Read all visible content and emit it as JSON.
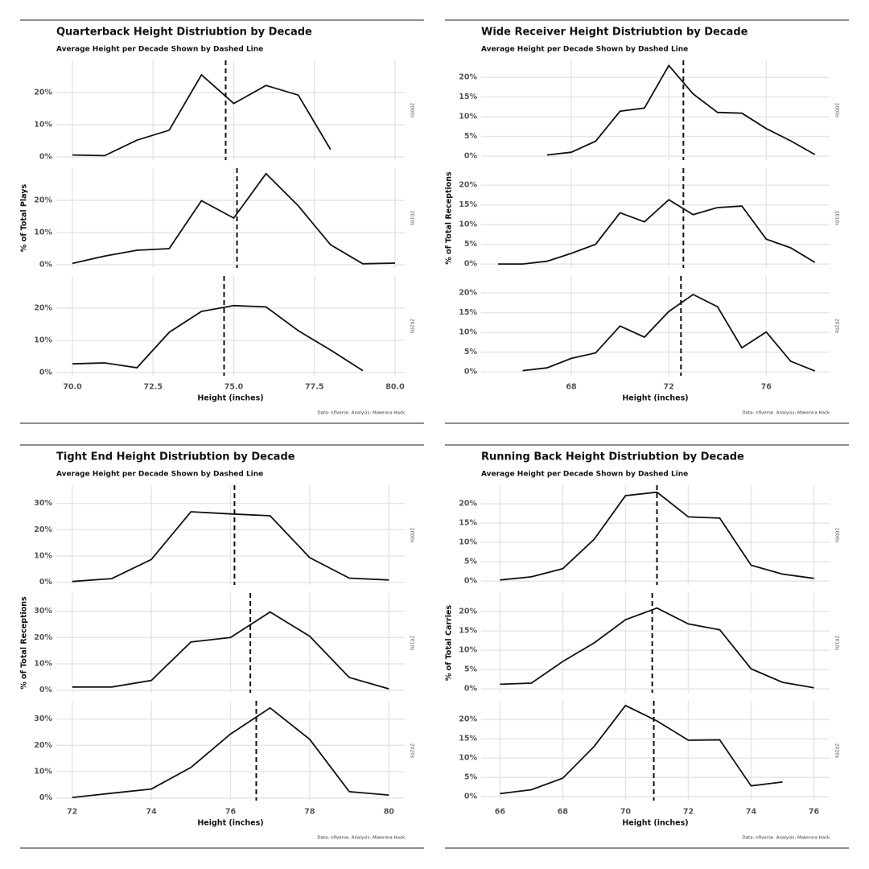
{
  "chart_data": [
    {
      "type": "line",
      "title": "Quarterback Height Distriubtion by Decade",
      "subtitle": "Average Height per Decade Shown by Dashed Line",
      "y_label": "% of Total Plays",
      "x_label": "Height (inches)",
      "caption": "Data: nflverse. Analysis: Makenna Hack.",
      "color": "#111111",
      "xlim": [
        69.5,
        80.3
      ],
      "xticks": [
        {
          "value": 70,
          "label": "70.0"
        },
        {
          "value": 72.5,
          "label": "72.5"
        },
        {
          "value": 75,
          "label": "75.0"
        },
        {
          "value": 77.5,
          "label": "77.5"
        },
        {
          "value": 80,
          "label": "80.0"
        }
      ],
      "ylim": [
        -1,
        30
      ],
      "yticks": [
        {
          "value": 0,
          "label": "0%"
        },
        {
          "value": 10,
          "label": "10%"
        },
        {
          "value": 20,
          "label": "20%"
        }
      ],
      "facets": [
        {
          "label": "2000s",
          "x": [
            70,
            71,
            72,
            73,
            74,
            75,
            76,
            77,
            78
          ],
          "values": [
            0.6,
            0.4,
            5.2,
            8.3,
            25.5,
            16.6,
            22.2,
            19.2,
            2.3
          ],
          "mean": 74.75
        },
        {
          "label": "2010s",
          "x": [
            70,
            71,
            72,
            73,
            74,
            75,
            76,
            77,
            78,
            79,
            80
          ],
          "values": [
            0.4,
            2.7,
            4.5,
            5.0,
            19.9,
            14.5,
            28.3,
            18.3,
            6.2,
            0.3,
            0.5
          ],
          "mean": 75.1
        },
        {
          "label": "2020s",
          "x": [
            70,
            71,
            72,
            73,
            74,
            75,
            76,
            77,
            78,
            79
          ],
          "values": [
            2.7,
            3.0,
            1.5,
            12.5,
            19.0,
            20.8,
            20.4,
            13.0,
            7.0,
            0.6
          ],
          "mean": 74.7
        }
      ]
    },
    {
      "type": "line",
      "title": "Wide Receiver Height Distriubtion by Decade",
      "subtitle": "Average Height per Decade Shown by Dashed Line",
      "y_label": "% of Total Receptions",
      "x_label": "Height (inches)",
      "caption": "Data: nflverse. Analysis: Makenna Hack.",
      "color": "#111111",
      "xlim": [
        64.3,
        78.6
      ],
      "xticks": [
        68,
        72,
        76
      ],
      "ylim": [
        -1,
        24.3
      ],
      "yticks": [
        {
          "value": 0,
          "label": "0%"
        },
        {
          "value": 5,
          "label": "5%"
        },
        {
          "value": 10,
          "label": "10%"
        },
        {
          "value": 15,
          "label": "15%"
        },
        {
          "value": 20,
          "label": "20%"
        }
      ],
      "facets": [
        {
          "label": "2000s",
          "x": [
            67,
            68,
            69,
            70,
            71,
            72,
            73,
            74,
            75,
            76,
            77,
            78
          ],
          "values": [
            0.3,
            1.0,
            3.8,
            11.4,
            12.2,
            23.0,
            15.8,
            11.1,
            10.9,
            7.0,
            3.9,
            0.4
          ],
          "mean": 72.6
        },
        {
          "label": "2010s",
          "x": [
            65,
            66,
            67,
            68,
            69,
            70,
            71,
            72,
            73,
            74,
            75,
            76,
            77,
            78
          ],
          "values": [
            0.0,
            0.0,
            0.7,
            2.7,
            5.0,
            13.0,
            10.7,
            16.3,
            12.5,
            14.3,
            14.7,
            6.3,
            4.1,
            0.4
          ],
          "mean": 72.6
        },
        {
          "label": "2020s",
          "x": [
            66,
            67,
            68,
            69,
            70,
            71,
            72,
            73,
            74,
            75,
            76,
            77,
            78
          ],
          "values": [
            0.3,
            1.0,
            3.4,
            4.8,
            11.6,
            8.8,
            15.3,
            19.6,
            16.5,
            6.1,
            10.1,
            2.7,
            0.2
          ],
          "mean": 72.5
        }
      ]
    },
    {
      "type": "line",
      "title": "Tight End Height Distriubtion by Decade",
      "subtitle": "Average Height per Decade Shown by Dashed Line",
      "y_label": "% of Total Receptions",
      "x_label": "Height (inches)",
      "caption": "Data: nflverse. Analysis: Makenna Hack.",
      "color": "#111111",
      "xlim": [
        71.6,
        80.4
      ],
      "xticks": [
        72,
        74,
        76,
        78,
        80
      ],
      "ylim": [
        -1,
        36.9
      ],
      "yticks": [
        {
          "value": 0,
          "label": "0%"
        },
        {
          "value": 10,
          "label": "10%"
        },
        {
          "value": 20,
          "label": "20%"
        },
        {
          "value": 30,
          "label": "30%"
        }
      ],
      "facets": [
        {
          "label": "2000s",
          "x": [
            72,
            73,
            74,
            75,
            76,
            77,
            78,
            79,
            80
          ],
          "values": [
            0.3,
            1.4,
            8.7,
            26.8,
            26.0,
            25.3,
            9.4,
            1.6,
            0.9
          ],
          "mean": 76.1
        },
        {
          "label": "2010s",
          "x": [
            72,
            73,
            74,
            75,
            76,
            77,
            78,
            79,
            80
          ],
          "values": [
            1.2,
            1.2,
            3.7,
            18.3,
            20.0,
            29.7,
            20.5,
            4.8,
            0.5
          ],
          "mean": 76.5
        },
        {
          "label": "2020s",
          "x": [
            72,
            73,
            74,
            75,
            76,
            77,
            78,
            79,
            80
          ],
          "values": [
            0.2,
            1.8,
            3.4,
            11.6,
            24.3,
            34.2,
            22.3,
            2.4,
            1.1
          ],
          "mean": 76.65
        }
      ]
    },
    {
      "type": "line",
      "title": "Running Back Height Distriubtion by Decade",
      "subtitle": "Average Height per Decade Shown by Dashed Line",
      "y_label": "% of Total Carries",
      "x_label": "Height (inches)",
      "caption": "Data: nflverse. Analysis: Makenna Hack.",
      "color": "#111111",
      "xlim": [
        65.4,
        76.5
      ],
      "xticks": [
        66,
        68,
        70,
        72,
        74,
        76
      ],
      "ylim": [
        -1,
        24.8
      ],
      "yticks": [
        {
          "value": 0,
          "label": "0%"
        },
        {
          "value": 5,
          "label": "5%"
        },
        {
          "value": 10,
          "label": "10%"
        },
        {
          "value": 15,
          "label": "15%"
        },
        {
          "value": 20,
          "label": "20%"
        }
      ],
      "facets": [
        {
          "label": "2000s",
          "x": [
            66,
            67,
            68,
            69,
            70,
            71,
            72,
            73,
            74,
            75,
            76
          ],
          "values": [
            0.3,
            1.1,
            3.2,
            10.8,
            22.1,
            23.0,
            16.6,
            16.3,
            4.1,
            1.8,
            0.7
          ],
          "mean": 71.0
        },
        {
          "label": "2010s",
          "x": [
            66,
            67,
            68,
            69,
            70,
            71,
            72,
            73,
            74,
            75,
            76
          ],
          "values": [
            1.2,
            1.5,
            7.1,
            11.9,
            17.9,
            20.9,
            16.8,
            15.3,
            5.2,
            1.7,
            0.3
          ],
          "mean": 70.85
        },
        {
          "label": "2020s",
          "x": [
            66,
            67,
            68,
            69,
            70,
            71,
            72,
            73,
            74,
            75
          ],
          "values": [
            0.8,
            1.8,
            4.8,
            13.0,
            23.6,
            19.6,
            14.6,
            14.7,
            2.8,
            3.8
          ],
          "mean": 70.9
        }
      ]
    }
  ]
}
